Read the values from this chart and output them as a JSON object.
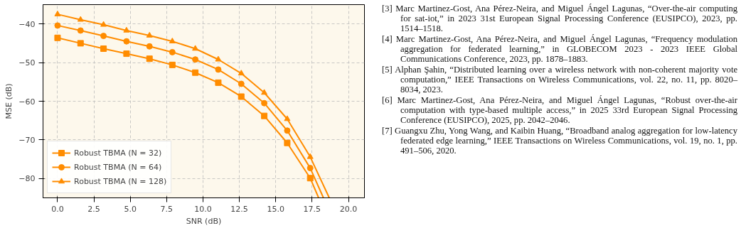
{
  "chart_data": {
    "type": "line",
    "xlabel": "SNR (dB)",
    "ylabel": "MSE (dB)",
    "xlim": [
      -1,
      21.1
    ],
    "ylim": [
      -85,
      -35
    ],
    "xticks": [
      {
        "value": 0,
        "label": "0.0"
      },
      {
        "value": 2.5,
        "label": "2.5"
      },
      {
        "value": 5,
        "label": "5.0"
      },
      {
        "value": 7.5,
        "label": "7.5"
      },
      {
        "value": 10,
        "label": "10.0"
      },
      {
        "value": 12.5,
        "label": "12.5"
      },
      {
        "value": 15,
        "label": "15.0"
      },
      {
        "value": 17.5,
        "label": "17.5"
      },
      {
        "value": 20,
        "label": "20.0"
      }
    ],
    "yticks": [
      -80,
      -70,
      -60,
      -50,
      -40
    ],
    "grid": true,
    "legend": "bottom left",
    "line_style": "solid",
    "series": [
      {
        "name": "Robust TBMA (N = 32)",
        "color": "#ff8c00",
        "marker": "square",
        "x": [
          0,
          1.58,
          3.16,
          4.74,
          6.32,
          7.89,
          9.47,
          11.05,
          12.63,
          14.21,
          15.79,
          17.37,
          17.95
        ],
        "values": [
          -43.6,
          -45.0,
          -46.4,
          -47.7,
          -49.0,
          -50.6,
          -52.6,
          -55.2,
          -58.8,
          -63.8,
          -70.8,
          -79.9,
          -85
        ]
      },
      {
        "name": "Robust TBMA (N = 64)",
        "color": "#ff8c00",
        "marker": "circle",
        "x": [
          0,
          1.58,
          3.16,
          4.74,
          6.32,
          7.89,
          9.47,
          11.05,
          12.63,
          14.21,
          15.79,
          17.37,
          18.28
        ],
        "values": [
          -40.4,
          -41.7,
          -43.1,
          -44.5,
          -45.8,
          -47.3,
          -49.2,
          -51.8,
          -55.5,
          -60.5,
          -67.6,
          -77.3,
          -85
        ]
      },
      {
        "name": "Robust TBMA (N = 128)",
        "color": "#ff8c00",
        "marker": "triangle",
        "x": [
          0,
          1.58,
          3.16,
          4.74,
          6.32,
          7.89,
          9.47,
          11.05,
          12.63,
          14.21,
          15.79,
          17.37,
          18.68
        ],
        "values": [
          -37.5,
          -38.9,
          -40.2,
          -41.7,
          -43.0,
          -44.5,
          -46.4,
          -49.2,
          -52.8,
          -57.8,
          -64.6,
          -74.4,
          -85
        ]
      }
    ],
    "annotations": [
      "[3] Marc Martinez-Gost, Ana Pérez-Neira, and Miguel Ángel Lagunas, “Over-the-air computing for sat-iot,” in 2023 31st European Signal Processing Conference (EUSIPCO), 2023, pp. 1514–1518.",
      "[4] Marc Martinez-Gost, Ana Pérez-Neira, and Miguel Ángel Lagunas, “Frequency modulation aggregation for federated learning,” in GLOBECOM 2023 - 2023 IEEE Global Communications Conference, 2023, pp. 1878–1883.",
      "[5] Alphan Şahin, “Distributed learning over a wireless network with non-coherent majority vote computation,” IEEE Transactions on Wireless Communications, vol. 22, no. 11, pp. 8020–8034, 2023.",
      "[6] Marc Martinez-Gost, Ana Pérez-Neira, and Miguel Ángel Lagunas, “Robust over-the-air computation with type-based multiple access,” in 2025 33rd European Signal Processing Conference (EUSIPCO), 2025, pp. 2042–2046.",
      "[7] Guangxu Zhu, Yong Wang, and Kaibin Huang, “Broadband analog aggregation for low-latency federated edge learning,” IEEE Transactions on Wireless Communications, vol. 19, no. 1, pp. 491–506, 2020."
    ]
  }
}
